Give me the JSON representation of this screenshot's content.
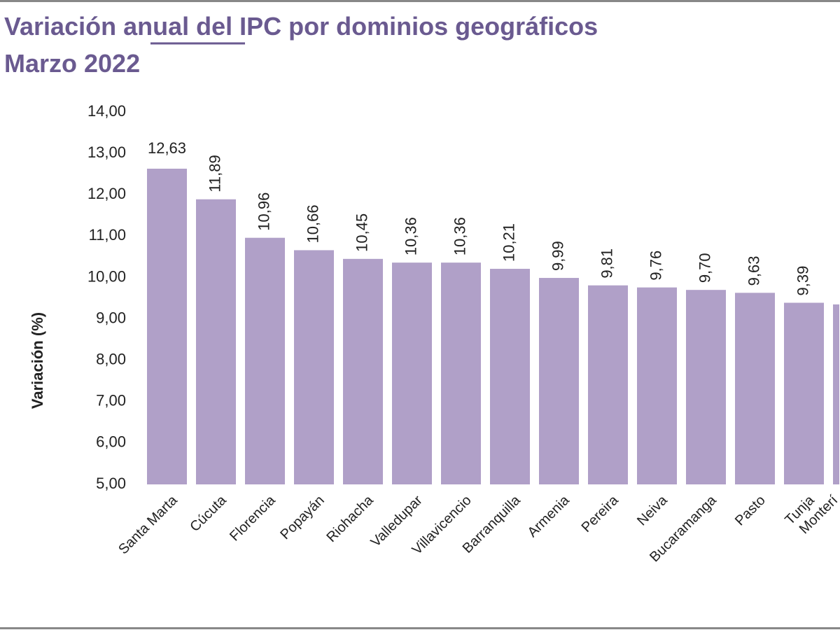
{
  "chart_data": {
    "type": "bar",
    "title": "Variación anual del IPC por dominios geográficos",
    "subtitle": "Marzo 2022",
    "y_label": "Variación (%)",
    "categories": [
      "Santa Marta",
      "Cúcuta",
      "Florencia",
      "Popayán",
      "Riohacha",
      "Valledupar",
      "Villavicencio",
      "Barranquilla",
      "Armenia",
      "Pereira",
      "Neiva",
      "Bucaramanga",
      "Pasto",
      "Tunja",
      "Monterí"
    ],
    "values": [
      12.63,
      11.89,
      10.96,
      10.66,
      10.45,
      10.36,
      10.36,
      10.21,
      9.99,
      9.81,
      9.76,
      9.7,
      9.63,
      9.39,
      9.35
    ],
    "value_labels": [
      "12,63",
      "11,89",
      "10,96",
      "10,66",
      "10,45",
      "10,36",
      "10,36",
      "10,21",
      "9,99",
      "9,81",
      "9,76",
      "9,70",
      "9,63",
      "9,39",
      null
    ],
    "color": "#b0a0c8",
    "ylim": [
      5,
      14
    ],
    "yticks": [
      {
        "value": 5,
        "label": "5,00"
      },
      {
        "value": 6,
        "label": "6,00"
      },
      {
        "value": 7,
        "label": "7,00"
      },
      {
        "value": 8,
        "label": "8,00"
      },
      {
        "value": 9,
        "label": "9,00"
      },
      {
        "value": 10,
        "label": "10,00"
      },
      {
        "value": 11,
        "label": "11,00"
      },
      {
        "value": 12,
        "label": "12,00"
      },
      {
        "value": 13,
        "label": "13,00"
      },
      {
        "value": 14,
        "label": "14,00"
      }
    ],
    "grid": false
  }
}
